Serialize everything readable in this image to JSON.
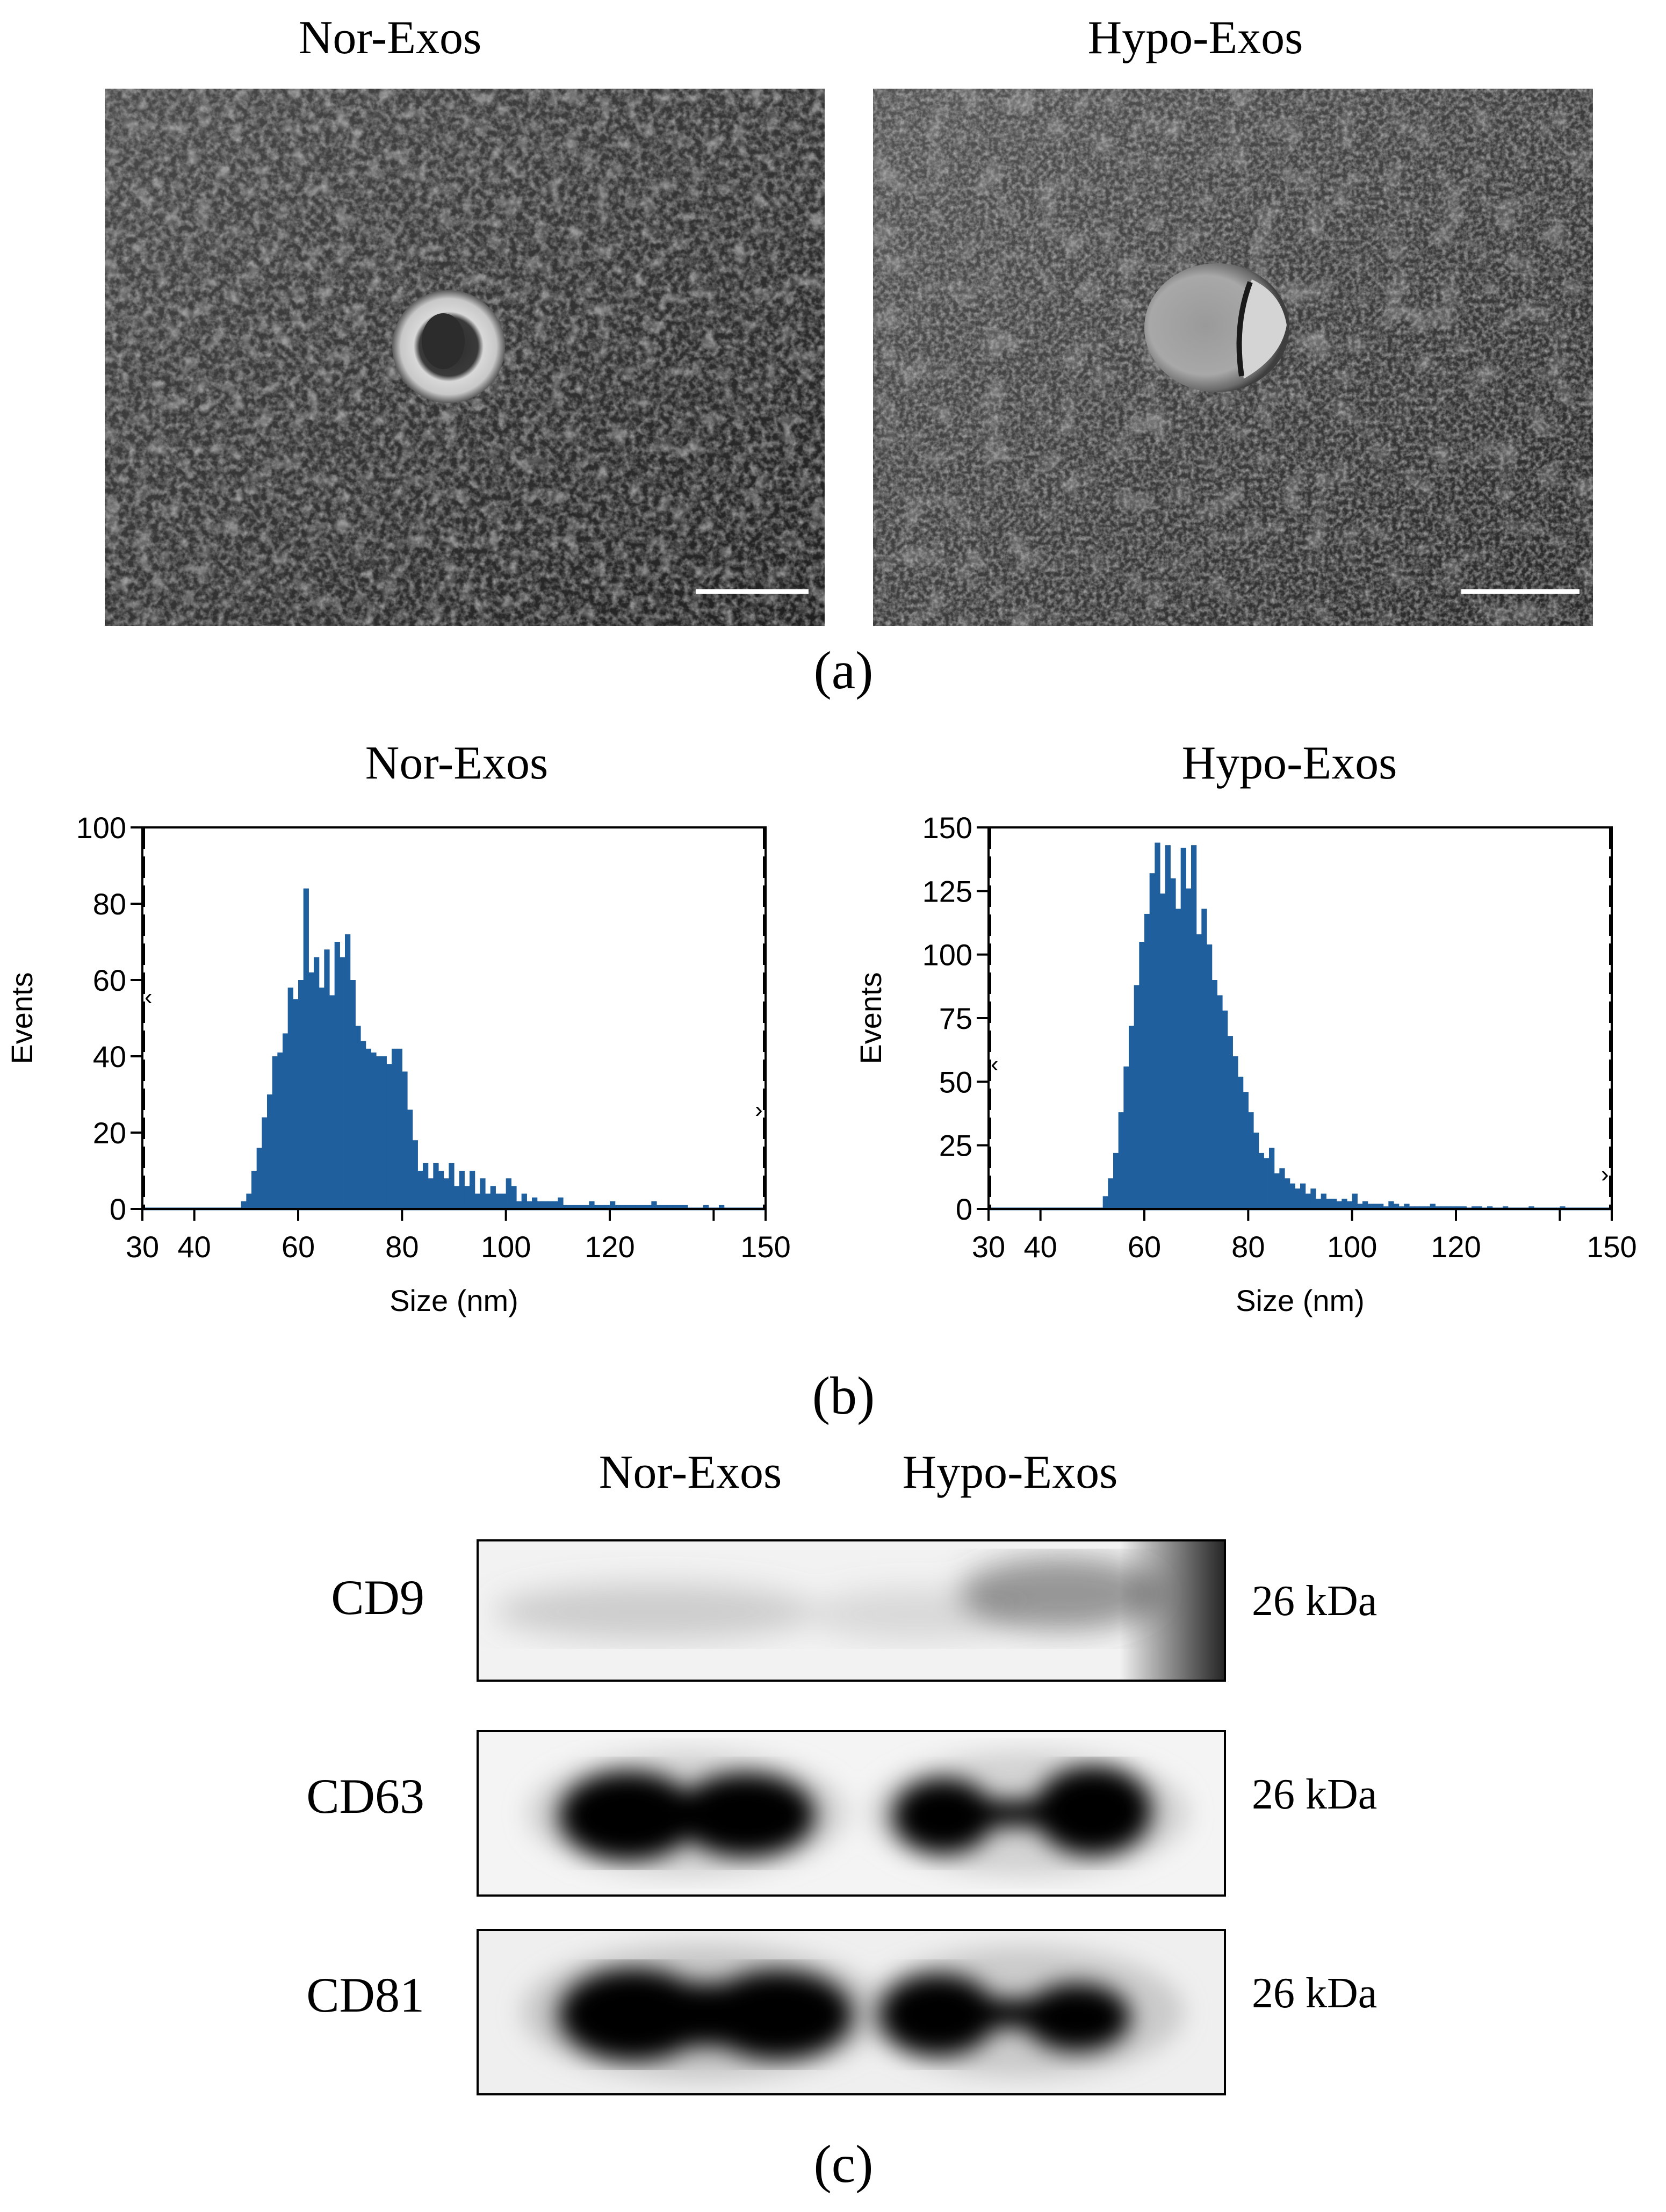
{
  "panel_a": {
    "label": "(a)",
    "images": [
      {
        "title": "Nor-Exos"
      },
      {
        "title": "Hypo-Exos"
      }
    ]
  },
  "panel_b": {
    "label": "(b)"
  },
  "panel_c": {
    "label": "(c)",
    "lanes": [
      "Nor-Exos",
      "Hypo-Exos"
    ],
    "rows": [
      {
        "protein": "CD9",
        "mw": "26 kDa"
      },
      {
        "protein": "CD63",
        "mw": "26 kDa"
      },
      {
        "protein": "CD81",
        "mw": "26 kDa"
      }
    ]
  },
  "chart_data": [
    {
      "type": "bar",
      "title": "Nor-Exos",
      "xlabel": "Size (nm)",
      "ylabel": "Events",
      "xlim": [
        30,
        150
      ],
      "ylim": [
        0,
        100
      ],
      "xticks": [
        30,
        40,
        60,
        80,
        100,
        120,
        150
      ],
      "yticks": [
        0,
        20,
        40,
        60,
        80,
        100
      ],
      "bin_width": 1,
      "color": "#1f5f9e",
      "x": [
        49,
        50,
        51,
        52,
        53,
        54,
        55,
        56,
        57,
        58,
        59,
        60,
        61,
        62,
        63,
        64,
        65,
        66,
        67,
        68,
        69,
        70,
        71,
        72,
        73,
        74,
        75,
        76,
        77,
        78,
        79,
        80,
        81,
        82,
        83,
        84,
        85,
        86,
        87,
        88,
        89,
        90,
        91,
        92,
        93,
        94,
        95,
        96,
        97,
        98,
        99,
        100,
        101,
        102,
        103,
        104,
        105,
        106,
        107,
        108,
        109,
        110,
        111,
        112,
        113,
        114,
        115,
        116,
        117,
        118,
        119,
        120,
        121,
        122,
        123,
        124,
        125,
        126,
        127,
        128,
        129,
        130,
        131,
        132,
        133,
        134,
        135,
        136,
        137,
        138,
        139,
        140,
        141,
        142,
        143,
        144,
        145,
        146,
        147,
        148,
        149
      ],
      "values": [
        2,
        4,
        10,
        16,
        24,
        30,
        40,
        41,
        46,
        58,
        55,
        60,
        84,
        62,
        66,
        58,
        68,
        56,
        70,
        66,
        72,
        60,
        48,
        44,
        42,
        41,
        40,
        40,
        38,
        42,
        42,
        36,
        26,
        18,
        10,
        12,
        8,
        12,
        10,
        8,
        12,
        6,
        10,
        6,
        10,
        4,
        8,
        4,
        6,
        4,
        4,
        8,
        6,
        2,
        4,
        2,
        3,
        2,
        2,
        2,
        2,
        3,
        1,
        1,
        1,
        1,
        1,
        2,
        1,
        1,
        1,
        2,
        1,
        1,
        1,
        1,
        1,
        1,
        1,
        2,
        1,
        1,
        1,
        1,
        1,
        1,
        0,
        0,
        0,
        1,
        0,
        0,
        1,
        0,
        0,
        0,
        0,
        0,
        0,
        0,
        0
      ]
    },
    {
      "type": "bar",
      "title": "Hypo-Exos",
      "xlabel": "Size (nm)",
      "ylabel": "Events",
      "xlim": [
        30,
        150
      ],
      "ylim": [
        0,
        150
      ],
      "xticks": [
        30,
        40,
        60,
        80,
        100,
        120,
        150
      ],
      "yticks": [
        0,
        25,
        50,
        75,
        100,
        125,
        150
      ],
      "bin_width": 1,
      "color": "#1f5f9e",
      "x": [
        49,
        50,
        51,
        52,
        53,
        54,
        55,
        56,
        57,
        58,
        59,
        60,
        61,
        62,
        63,
        64,
        65,
        66,
        67,
        68,
        69,
        70,
        71,
        72,
        73,
        74,
        75,
        76,
        77,
        78,
        79,
        80,
        81,
        82,
        83,
        84,
        85,
        86,
        87,
        88,
        89,
        90,
        91,
        92,
        93,
        94,
        95,
        96,
        97,
        98,
        99,
        100,
        101,
        102,
        103,
        104,
        105,
        106,
        107,
        108,
        109,
        110,
        111,
        112,
        113,
        114,
        115,
        116,
        117,
        118,
        119,
        120,
        121,
        122,
        123,
        124,
        125,
        126,
        127,
        128,
        129,
        130,
        131,
        132,
        133,
        134,
        135,
        136,
        137,
        138,
        139,
        140,
        141,
        142,
        143,
        144,
        145,
        146,
        147,
        148,
        149
      ],
      "values": [
        0,
        0,
        0,
        5,
        12,
        22,
        38,
        56,
        72,
        88,
        105,
        116,
        132,
        144,
        124,
        143,
        130,
        118,
        142,
        126,
        143,
        108,
        118,
        104,
        90,
        84,
        78,
        68,
        60,
        52,
        46,
        38,
        30,
        22,
        20,
        24,
        14,
        16,
        12,
        10,
        8,
        10,
        6,
        8,
        4,
        6,
        4,
        4,
        3,
        4,
        3,
        6,
        2,
        3,
        2,
        2,
        2,
        1,
        3,
        2,
        1,
        2,
        1,
        1,
        1,
        1,
        2,
        1,
        1,
        1,
        1,
        1,
        1,
        0,
        1,
        1,
        0,
        1,
        0,
        0,
        1,
        0,
        0,
        0,
        0,
        1,
        0,
        0,
        0,
        0,
        0,
        1,
        0,
        0,
        0,
        0,
        0,
        0,
        0,
        0,
        0
      ]
    }
  ]
}
